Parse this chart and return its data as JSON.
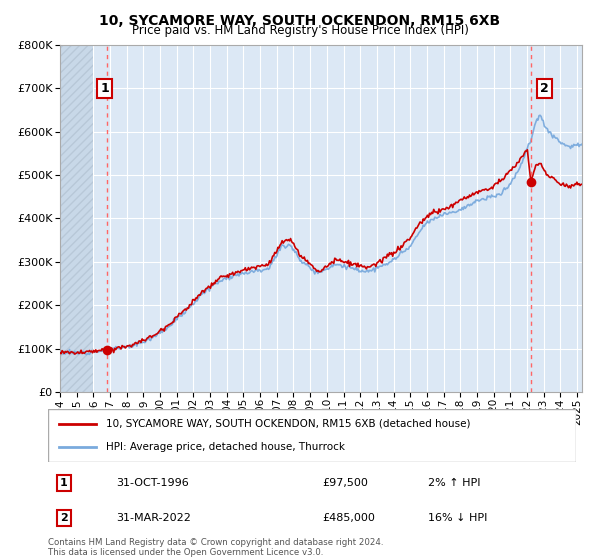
{
  "title": "10, SYCAMORE WAY, SOUTH OCKENDON, RM15 6XB",
  "subtitle": "Price paid vs. HM Land Registry's House Price Index (HPI)",
  "legend_line1": "10, SYCAMORE WAY, SOUTH OCKENDON, RM15 6XB (detached house)",
  "legend_line2": "HPI: Average price, detached house, Thurrock",
  "annotation1_label": "1",
  "annotation1_date": "31-OCT-1996",
  "annotation1_price": "£97,500",
  "annotation1_hpi": "2% ↑ HPI",
  "annotation2_label": "2",
  "annotation2_date": "31-MAR-2022",
  "annotation2_price": "£485,000",
  "annotation2_hpi": "16% ↓ HPI",
  "footer": "Contains HM Land Registry data © Crown copyright and database right 2024.\nThis data is licensed under the Open Government Licence v3.0.",
  "ylim": [
    0,
    800000
  ],
  "xlim_start": 1994.0,
  "xlim_end": 2025.3,
  "sale1_x": 1996.83,
  "sale1_y": 97500,
  "sale2_x": 2022.25,
  "sale2_y": 485000,
  "price_line_color": "#cc0000",
  "hpi_line_color": "#7aaadd",
  "dashed_vline_color": "#ff6666",
  "grid_color": "#c8d8e8",
  "plot_bg_color": "#dce8f5",
  "annotation_box_color": "#cc0000",
  "hatch_color": "#b8c8d8",
  "hatch_bg": "#c8d8e8"
}
